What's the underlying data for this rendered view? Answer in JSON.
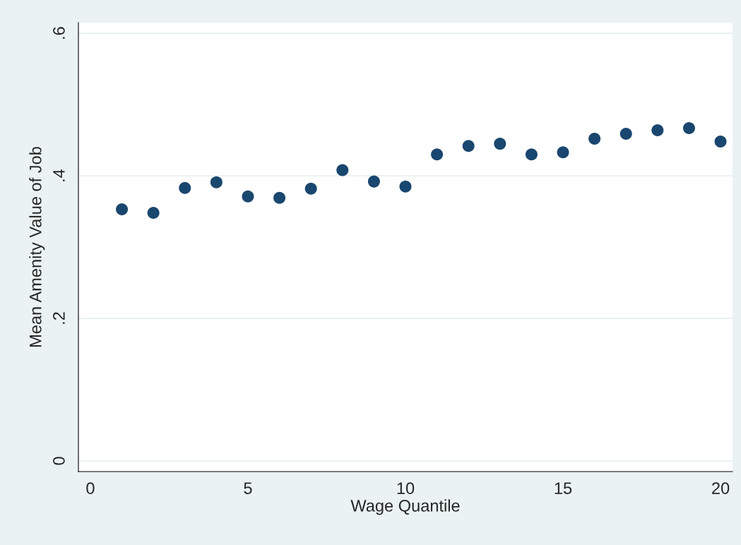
{
  "chart_data": {
    "type": "scatter",
    "xlabel": "Wage Quantile",
    "ylabel": "Mean Amenity Value of Job",
    "x": [
      1,
      2,
      3,
      4,
      5,
      6,
      7,
      8,
      9,
      10,
      11,
      12,
      13,
      14,
      15,
      16,
      17,
      18,
      19,
      20
    ],
    "series": [
      {
        "color": "#1a476f",
        "values": [
          0.353,
          0.348,
          0.383,
          0.391,
          0.371,
          0.369,
          0.382,
          0.408,
          0.392,
          0.385,
          0.43,
          0.442,
          0.445,
          0.43,
          0.433,
          0.452,
          0.459,
          0.464,
          0.467,
          0.448
        ]
      }
    ],
    "xlim": [
      -0.38,
      20.38
    ],
    "xticks": [
      0,
      5,
      10,
      15,
      20
    ],
    "ylim": [
      -0.015,
      0.615
    ],
    "yticks": [
      {
        "value": 0,
        "label": "0"
      },
      {
        "value": 0.2,
        "label": ".2"
      },
      {
        "value": 0.4,
        "label": ".4"
      },
      {
        "value": 0.6,
        "label": ".6"
      }
    ],
    "grid": "y",
    "marker": "circle",
    "legend": false
  }
}
